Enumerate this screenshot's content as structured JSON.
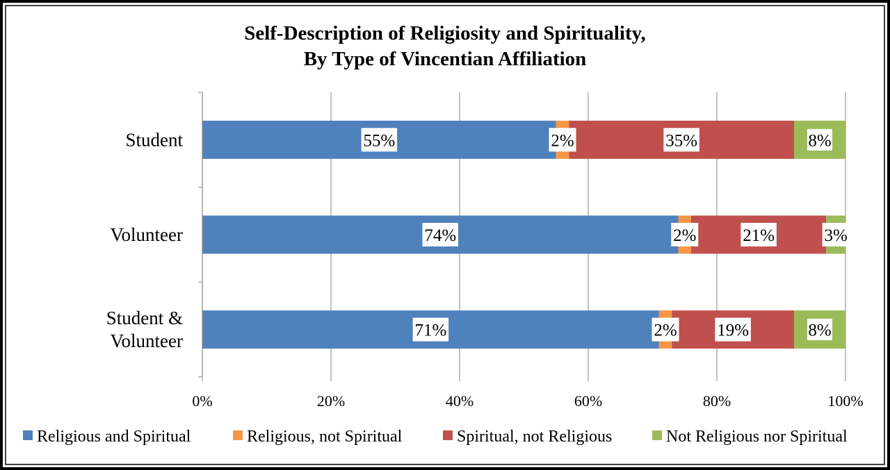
{
  "chart_data": {
    "type": "bar",
    "orientation": "horizontal",
    "stacked": "percent",
    "title": "Self-Description of Religiosity and Spirituality,",
    "subtitle": "By Type of Vincentian Affiliation",
    "categories": [
      [
        "Student"
      ],
      [
        "Volunteer"
      ],
      [
        "Student &",
        "Volunteer"
      ]
    ],
    "series": [
      {
        "name": "Religious and Spiritual",
        "color": "#4F81BD",
        "values": [
          55,
          74,
          71
        ],
        "labels": [
          "55%",
          "74%",
          "71%"
        ]
      },
      {
        "name": "Religious, not Spiritual",
        "color": "#F79646",
        "values": [
          2,
          2,
          2
        ],
        "labels": [
          "2%",
          "2%",
          "2%"
        ]
      },
      {
        "name": "Spiritual, not Religious",
        "color": "#C0504D",
        "values": [
          35,
          21,
          19
        ],
        "labels": [
          "35%",
          "21%",
          "19%"
        ]
      },
      {
        "name": "Not Religious nor Spiritual",
        "color": "#9BBB59",
        "values": [
          8,
          3,
          8
        ],
        "labels": [
          "8%",
          "3%",
          "8%"
        ]
      }
    ],
    "xlim": [
      0,
      100
    ],
    "xticks": [
      0,
      20,
      40,
      60,
      80,
      100
    ],
    "xtick_labels": [
      "0%",
      "20%",
      "40%",
      "60%",
      "80%",
      "100%"
    ],
    "grid": "vertical",
    "legend": "bottom"
  }
}
